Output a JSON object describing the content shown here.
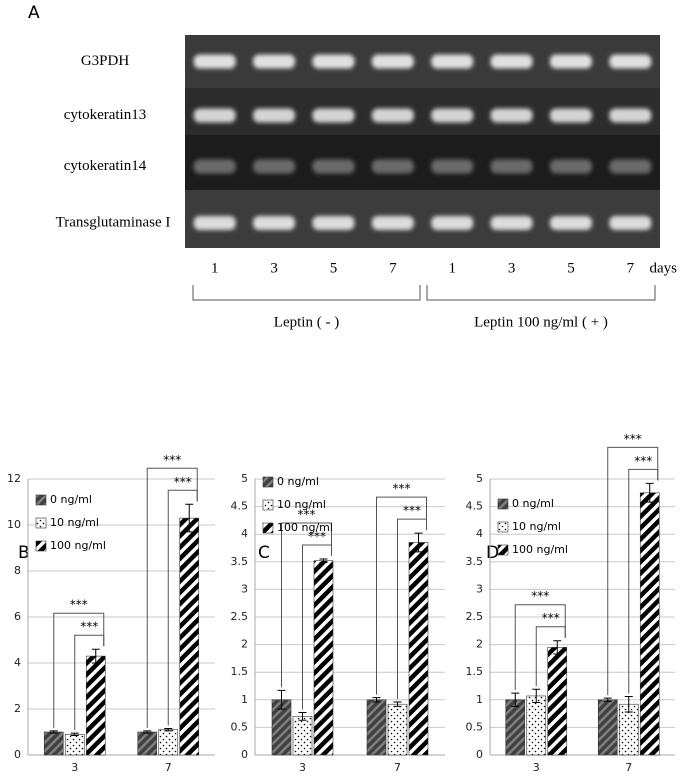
{
  "panel_labels": [
    "A",
    "B",
    "C",
    "D"
  ],
  "gel": {
    "rows": [
      "G3PDH",
      "cytokeratin13",
      "cytokeratin14",
      "Transglutaminase I"
    ],
    "lanes": [
      "1",
      "3",
      "5",
      "7",
      "1",
      "3",
      "5",
      "7"
    ],
    "lane_unit": "days",
    "groups": [
      "Leptin ( - )",
      "Leptin 100 ng/ml ( + )"
    ]
  },
  "chart_data": [
    {
      "type": "bar",
      "categories": [
        "3",
        "7"
      ],
      "series": [
        {
          "name": "0 ng/ml",
          "color": "#595959",
          "values": [
            1.0,
            1.0
          ],
          "errors": [
            0.05,
            0.05
          ]
        },
        {
          "name": "10 ng/ml",
          "color": "#ffffff",
          "values": [
            0.9,
            1.1
          ],
          "errors": [
            0.05,
            0.05
          ]
        },
        {
          "name": "100 ng/ml",
          "color": "#000000",
          "values": [
            4.3,
            10.3
          ],
          "errors": [
            0.3,
            0.6
          ]
        }
      ],
      "ylim": [
        0,
        12
      ],
      "yticks": [
        0,
        2,
        4,
        6,
        8,
        10,
        12
      ],
      "grid": true,
      "legend": "upper left",
      "annotations": [
        "***",
        "***",
        "***",
        "***"
      ]
    },
    {
      "type": "bar",
      "categories": [
        "3",
        "7"
      ],
      "series": [
        {
          "name": "0 ng/ml",
          "color": "#595959",
          "values": [
            1.0,
            1.0
          ],
          "errors": [
            0.17,
            0.04
          ]
        },
        {
          "name": "10 ng/ml",
          "color": "#ffffff",
          "values": [
            0.7,
            0.92
          ],
          "errors": [
            0.07,
            0.04
          ]
        },
        {
          "name": "100 ng/ml",
          "color": "#000000",
          "values": [
            3.52,
            3.85
          ],
          "errors": [
            0.03,
            0.17
          ]
        }
      ],
      "ylim": [
        0,
        5
      ],
      "yticks": [
        0,
        0.5,
        1,
        1.5,
        2,
        2.5,
        3,
        3.5,
        4,
        4.5,
        5
      ],
      "grid": true,
      "legend": "upper left",
      "annotations": [
        "***",
        "***",
        "***",
        "***"
      ]
    },
    {
      "type": "bar",
      "categories": [
        "3",
        "7"
      ],
      "series": [
        {
          "name": "0 ng/ml",
          "color": "#595959",
          "values": [
            1.0,
            1.0
          ],
          "errors": [
            0.12,
            0.03
          ]
        },
        {
          "name": "10 ng/ml",
          "color": "#ffffff",
          "values": [
            1.07,
            0.92
          ],
          "errors": [
            0.12,
            0.14
          ]
        },
        {
          "name": "100 ng/ml",
          "color": "#000000",
          "values": [
            1.95,
            4.75
          ],
          "errors": [
            0.12,
            0.17
          ]
        }
      ],
      "ylim": [
        0,
        5
      ],
      "yticks": [
        0,
        0.5,
        1,
        1.5,
        2,
        2.5,
        3,
        3.5,
        4,
        4.5,
        5
      ],
      "grid": true,
      "legend": "upper left",
      "annotations": [
        "***",
        "***",
        "***",
        "***"
      ]
    }
  ]
}
